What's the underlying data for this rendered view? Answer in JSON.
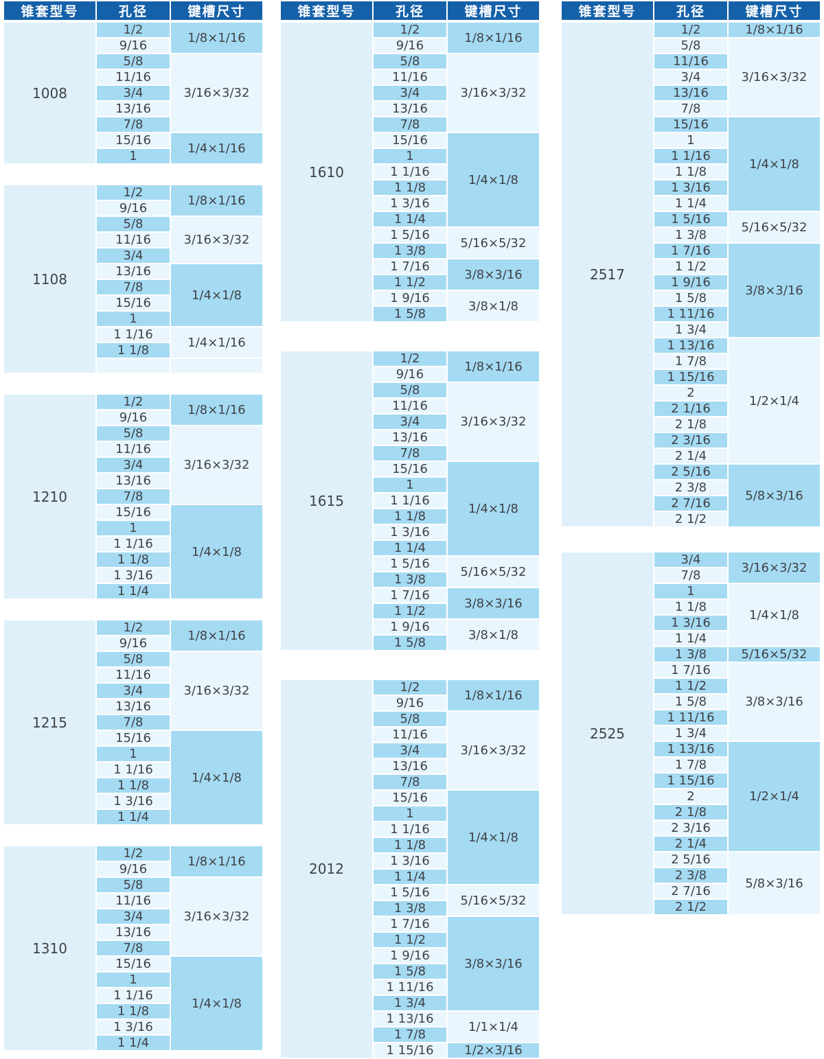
{
  "colors": {
    "header_bg": "#1561A9",
    "header_text": "#FFFFFF",
    "row_dark": "#A5DAF3",
    "row_light": "#EAF6FD",
    "model_bg": "#DFF0FA",
    "cell_text": "#3F4245",
    "page_bg": "#FFFFFF"
  },
  "headers": {
    "model": "锥套型号",
    "bore": "孔径",
    "keyway": "键槽尺寸"
  },
  "columns": [
    {
      "name": "column-1",
      "groups": [
        {
          "model": "1008",
          "bores": [
            "1/2",
            "9/16",
            "5/8",
            "11/16",
            "3/4",
            "13/16",
            "7/8",
            "15/16",
            "1"
          ],
          "keyways": [
            {
              "label": "1/8×1/16",
              "span": 2,
              "tone": "d"
            },
            {
              "label": "3/16×3/32",
              "span": 5,
              "tone": "l"
            },
            {
              "label": "1/4×1/16",
              "span": 2,
              "tone": "d"
            }
          ]
        },
        {
          "model": "1108",
          "bores": [
            "1/2",
            "9/16",
            "5/8",
            "11/16",
            "3/4",
            "13/16",
            "7/8",
            "15/16",
            "1",
            "1 1/16",
            "1 1/8",
            ""
          ],
          "keyways": [
            {
              "label": "1/8×1/16",
              "span": 2,
              "tone": "d"
            },
            {
              "label": "3/16×3/32",
              "span": 3,
              "tone": "l"
            },
            {
              "label": "1/4×1/8",
              "span": 4,
              "tone": "d"
            },
            {
              "label": "1/4×1/16",
              "span": 2,
              "tone": "l"
            },
            {
              "label": "",
              "span": 1,
              "tone": "l"
            }
          ]
        },
        {
          "model": "1210",
          "bores": [
            "1/2",
            "9/16",
            "5/8",
            "11/16",
            "3/4",
            "13/16",
            "7/8",
            "15/16",
            "1",
            "1 1/16",
            "1 1/8",
            "1 3/16",
            "1 1/4"
          ],
          "keyways": [
            {
              "label": "1/8×1/16",
              "span": 2,
              "tone": "d"
            },
            {
              "label": "3/16×3/32",
              "span": 5,
              "tone": "l"
            },
            {
              "label": "1/4×1/8",
              "span": 6,
              "tone": "d"
            }
          ]
        },
        {
          "model": "1215",
          "bores": [
            "1/2",
            "9/16",
            "5/8",
            "11/16",
            "3/4",
            "13/16",
            "7/8",
            "15/16",
            "1",
            "1 1/16",
            "1 1/8",
            "1 3/16",
            "1 1/4"
          ],
          "keyways": [
            {
              "label": "1/8×1/16",
              "span": 2,
              "tone": "d"
            },
            {
              "label": "3/16×3/32",
              "span": 5,
              "tone": "l"
            },
            {
              "label": "1/4×1/8",
              "span": 6,
              "tone": "d"
            }
          ]
        },
        {
          "model": "1310",
          "bores": [
            "1/2",
            "9/16",
            "5/8",
            "11/16",
            "3/4",
            "13/16",
            "7/8",
            "15/16",
            "1",
            "1 1/16",
            "1 1/8",
            "1 3/16",
            "1 1/4"
          ],
          "keyways": [
            {
              "label": "1/8×1/16",
              "span": 2,
              "tone": "d"
            },
            {
              "label": "3/16×3/32",
              "span": 5,
              "tone": "l"
            },
            {
              "label": "1/4×1/8",
              "span": 6,
              "tone": "d"
            }
          ]
        }
      ]
    },
    {
      "name": "column-2",
      "groups": [
        {
          "model": "1610",
          "bores": [
            "1/2",
            "9/16",
            "5/8",
            "11/16",
            "3/4",
            "13/16",
            "7/8",
            "15/16",
            "1",
            "1 1/16",
            "1 1/8",
            "1 3/16",
            "1 1/4",
            "1 5/16",
            "1 3/8",
            "1 7/16",
            "1 1/2",
            "1 9/16",
            "1 5/8"
          ],
          "keyways": [
            {
              "label": "1/8×1/16",
              "span": 2,
              "tone": "d"
            },
            {
              "label": "3/16×3/32",
              "span": 5,
              "tone": "l"
            },
            {
              "label": "1/4×1/8",
              "span": 6,
              "tone": "d"
            },
            {
              "label": "5/16×5/32",
              "span": 2,
              "tone": "l"
            },
            {
              "label": "3/8×3/16",
              "span": 2,
              "tone": "d"
            },
            {
              "label": "3/8×1/8",
              "span": 2,
              "tone": "l"
            }
          ]
        },
        {
          "model": "1615",
          "bores": [
            "1/2",
            "9/16",
            "5/8",
            "11/16",
            "3/4",
            "13/16",
            "7/8",
            "15/16",
            "1",
            "1 1/16",
            "1 1/8",
            "1 3/16",
            "1 1/4",
            "1 5/16",
            "1 3/8",
            "1 7/16",
            "1 1/2",
            "1 9/16",
            "1 5/8"
          ],
          "keyways": [
            {
              "label": "1/8×1/16",
              "span": 2,
              "tone": "d"
            },
            {
              "label": "3/16×3/32",
              "span": 5,
              "tone": "l"
            },
            {
              "label": "1/4×1/8",
              "span": 6,
              "tone": "d"
            },
            {
              "label": "5/16×5/32",
              "span": 2,
              "tone": "l"
            },
            {
              "label": "3/8×3/16",
              "span": 2,
              "tone": "d"
            },
            {
              "label": "3/8×1/8",
              "span": 2,
              "tone": "l"
            }
          ]
        },
        {
          "model": "2012",
          "bores": [
            "1/2",
            "9/16",
            "5/8",
            "11/16",
            "3/4",
            "13/16",
            "7/8",
            "15/16",
            "1",
            "1 1/16",
            "1 1/8",
            "1 3/16",
            "1 1/4",
            "1 5/16",
            "1 3/8",
            "1 7/16",
            "1 1/2",
            "1 9/16",
            "1 5/8",
            "1 11/16",
            "1 3/4",
            "1 13/16",
            "1 7/8",
            "1 15/16"
          ],
          "keyways": [
            {
              "label": "1/8×1/16",
              "span": 2,
              "tone": "d"
            },
            {
              "label": "3/16×3/32",
              "span": 5,
              "tone": "l"
            },
            {
              "label": "1/4×1/8",
              "span": 6,
              "tone": "d"
            },
            {
              "label": "5/16×5/32",
              "span": 2,
              "tone": "l"
            },
            {
              "label": "3/8×3/16",
              "span": 6,
              "tone": "d"
            },
            {
              "label": "1/1×1/4",
              "span": 2,
              "tone": "l"
            },
            {
              "label": "1/2×3/16",
              "span": 1,
              "tone": "d"
            }
          ]
        }
      ]
    },
    {
      "name": "column-3",
      "groups": [
        {
          "model": "2517",
          "bores": [
            "1/2",
            "5/8",
            "11/16",
            "3/4",
            "13/16",
            "7/8",
            "15/16",
            "1",
            "1 1/16",
            "1 1/8",
            "1 3/16",
            "1 1/4",
            "1 5/16",
            "1 3/8",
            "1 7/16",
            "1 1/2",
            "1 9/16",
            "1 5/8",
            "1 11/16",
            "1 3/4",
            "1 13/16",
            "1 7/8",
            "1 15/16",
            "2",
            "2 1/16",
            "2 1/8",
            "2 3/16",
            "2 1/4",
            "2 5/16",
            "2 3/8",
            "2 7/16",
            "2 1/2"
          ],
          "keyways": [
            {
              "label": "1/8×1/16",
              "span": 1,
              "tone": "d"
            },
            {
              "label": "3/16×3/32",
              "span": 5,
              "tone": "l"
            },
            {
              "label": "1/4×1/8",
              "span": 6,
              "tone": "d"
            },
            {
              "label": "5/16×5/32",
              "span": 2,
              "tone": "l"
            },
            {
              "label": "3/8×3/16",
              "span": 6,
              "tone": "d"
            },
            {
              "label": "1/2×1/4",
              "span": 8,
              "tone": "l"
            },
            {
              "label": "5/8×3/16",
              "span": 4,
              "tone": "d"
            }
          ]
        },
        {
          "model": "2525",
          "bores": [
            "3/4",
            "7/8",
            "1",
            "1 1/8",
            "1 3/16",
            "1 1/4",
            "1 3/8",
            "1 7/16",
            "1 1/2",
            "1 5/8",
            "1 11/16",
            "1 3/4",
            "1 13/16",
            "1 7/8",
            "1 15/16",
            "2",
            "2 1/8",
            "2 3/16",
            "2 1/4",
            "2 5/16",
            "2 3/8",
            "2 7/16",
            "2 1/2"
          ],
          "keyways": [
            {
              "label": "3/16×3/32",
              "span": 2,
              "tone": "d"
            },
            {
              "label": "1/4×1/8",
              "span": 4,
              "tone": "l"
            },
            {
              "label": "5/16×5/32",
              "span": 1,
              "tone": "d"
            },
            {
              "label": "3/8×3/16",
              "span": 5,
              "tone": "l"
            },
            {
              "label": "1/2×1/4",
              "span": 7,
              "tone": "d"
            },
            {
              "label": "5/8×3/16",
              "span": 4,
              "tone": "l"
            }
          ]
        }
      ]
    }
  ]
}
